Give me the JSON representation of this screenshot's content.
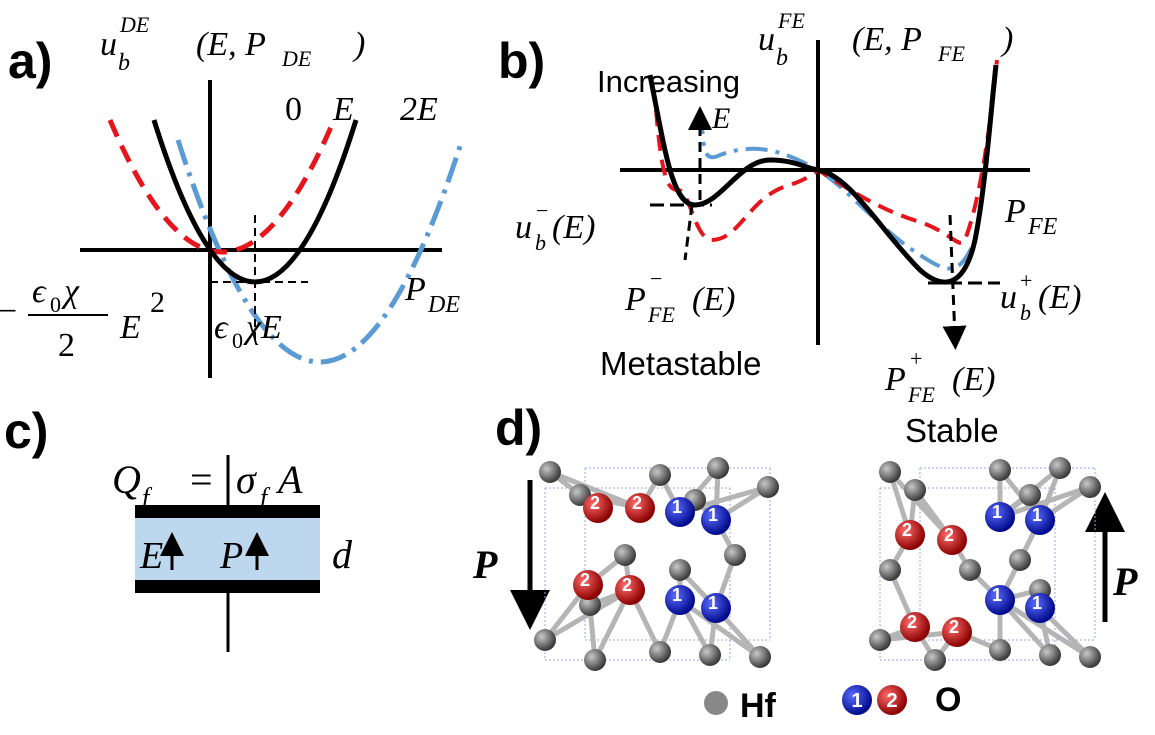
{
  "panel_a": {
    "label": "a)",
    "y_label": {
      "base": "u",
      "sub": "b",
      "sup": "DE",
      "args": "(E, P",
      "args_sub": "DE",
      "close": ")"
    },
    "curve_labels": [
      "0",
      "E",
      "2E"
    ],
    "x_label": {
      "base": "P",
      "sub": "DE"
    },
    "minimum_energy": {
      "sign": "−",
      "numerator": "ϵ",
      "numerator_sub": "0",
      "numerator_rest": "χ",
      "denominator": "2",
      "factor": "E",
      "factor_sup": "2"
    },
    "minimum_position": {
      "base": "ϵ",
      "sub": "0",
      "rest": "χE"
    }
  },
  "panel_b": {
    "label": "b)",
    "y_label": {
      "base": "u",
      "sub": "b",
      "sup": "FE",
      "args": "(E, P",
      "args_sub": "FE",
      "close": ")"
    },
    "arrow_label": "Increasing",
    "arrow_symbol": "E",
    "x_label": {
      "base": "P",
      "sub": "FE"
    },
    "metastable_energy": {
      "base": "u",
      "sub": "b",
      "sup": "−",
      "args": "(E)"
    },
    "metastable_polarization": {
      "base": "P",
      "sub": "FE",
      "sup": "−",
      "args": "(E)"
    },
    "metastable": "Metastable",
    "stable_energy": {
      "base": "u",
      "sub": "b",
      "sup": "+",
      "args": "(E)"
    },
    "stable_polarization": {
      "base": "P",
      "sub": "FE",
      "sup": "+",
      "args": "(E)"
    },
    "stable": "Stable"
  },
  "panel_c": {
    "label": "c)",
    "charge": {
      "base": "Q",
      "sub": "f",
      "eq": "=",
      "sigma": "σ",
      "sigma_sub": "f",
      "area": "A"
    },
    "field": "E",
    "polarization": "P",
    "thickness": "d"
  },
  "panel_d": {
    "label": "d)",
    "polarization_left": "P",
    "polarization_right": "P",
    "atom_labels": [
      "1",
      "2"
    ],
    "legend": {
      "hf": "Hf",
      "o": "O"
    }
  }
}
